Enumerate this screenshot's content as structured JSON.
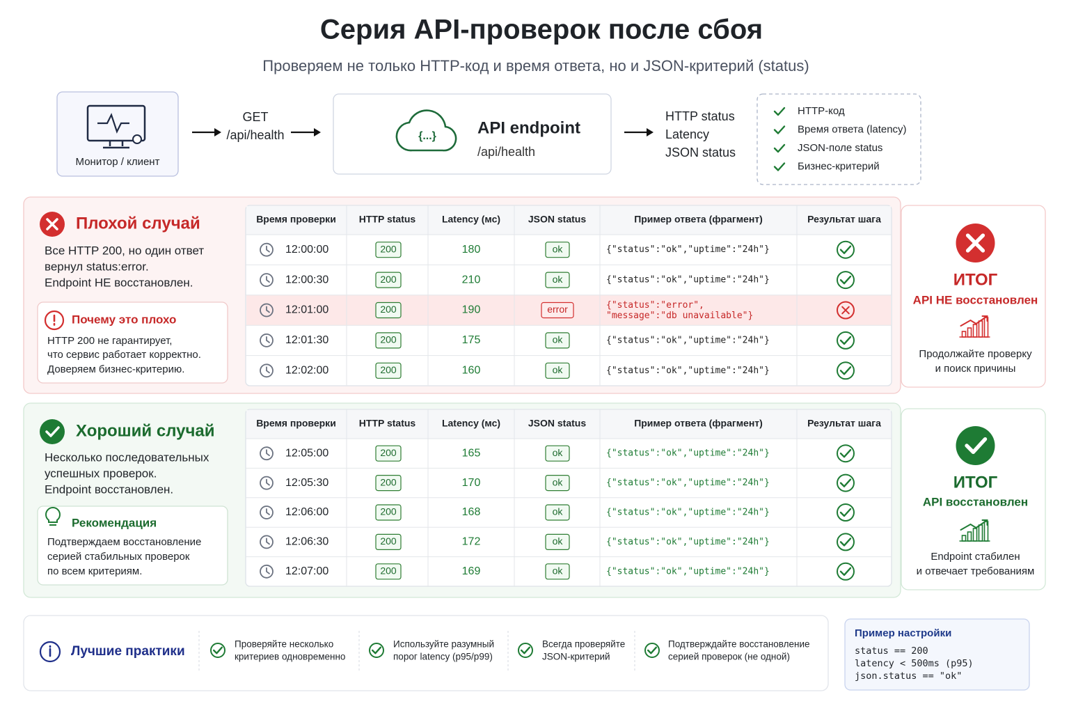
{
  "header": {
    "title": "Серия API-проверок после сбоя",
    "subtitle": "Проверяем не только HTTP-код и время ответа, но и JSON-критерий (status)"
  },
  "flow": {
    "client": "Монитор / клиент",
    "request": [
      "GET",
      "/api/health"
    ],
    "endpoint": {
      "title": "API endpoint",
      "path": "/api/health"
    },
    "outputs": [
      "HTTP status",
      "Latency",
      "JSON status"
    ],
    "criteria": [
      "HTTP-код",
      "Время ответа (latency)",
      "JSON-поле status",
      "Бизнес-критерий"
    ]
  },
  "bad_case": {
    "title": "Плохой случай",
    "description": [
      "Все HTTP 200, но один ответ",
      "вернул status:error.",
      "Endpoint НЕ восстановлен."
    ],
    "note": {
      "title": "Почему это плохо",
      "text": [
        "HTTP 200 не гарантирует,",
        "что сервис работает корректно.",
        "Доверяем бизнес-критерию."
      ]
    },
    "table": {
      "columns": [
        "Время проверки",
        "HTTP status",
        "Latency (мс)",
        "JSON status",
        "Пример ответа (фрагмент)",
        "Результат шага"
      ],
      "rows": [
        {
          "time": "12:00:00",
          "http": 200,
          "latency": 180,
          "json": "ok",
          "response": "{\"status\":\"ok\",\"uptime\":\"24h\"}"
        },
        {
          "time": "12:00:30",
          "http": 200,
          "latency": 210,
          "json": "ok",
          "response": "{\"status\":\"ok\",\"uptime\":\"24h\"}"
        },
        {
          "time": "12:01:00",
          "http": 200,
          "latency": 190,
          "json": "error",
          "response": [
            "{\"status\":\"error\",",
            "\"message\":\"db unavailable\"}"
          ]
        },
        {
          "time": "12:01:30",
          "http": 200,
          "latency": 175,
          "json": "ok",
          "response": "{\"status\":\"ok\",\"uptime\":\"24h\"}"
        },
        {
          "time": "12:02:00",
          "http": 200,
          "latency": 160,
          "json": "ok",
          "response": "{\"status\":\"ok\",\"uptime\":\"24h\"}"
        }
      ]
    },
    "result": {
      "heading": "ИТОГ",
      "status": "API НЕ восстановлен",
      "text": [
        "Продолжайте проверку",
        "и поиск причины"
      ]
    }
  },
  "good_case": {
    "title": "Хороший случай",
    "description": [
      "Несколько последовательных",
      "успешных проверок.",
      "Endpoint восстановлен."
    ],
    "note": {
      "title": "Рекомендация",
      "text": [
        "Подтверждаем восстановление",
        "серией стабильных проверок",
        "по всем критериям."
      ]
    },
    "table": {
      "columns": [
        "Время проверки",
        "HTTP status",
        "Latency (мс)",
        "JSON status",
        "Пример ответа (фрагмент)",
        "Результат шага"
      ],
      "rows": [
        {
          "time": "12:05:00",
          "http": 200,
          "latency": 165,
          "json": "ok",
          "response": "{\"status\":\"ok\",\"uptime\":\"24h\"}"
        },
        {
          "time": "12:05:30",
          "http": 200,
          "latency": 170,
          "json": "ok",
          "response": "{\"status\":\"ok\",\"uptime\":\"24h\"}"
        },
        {
          "time": "12:06:00",
          "http": 200,
          "latency": 168,
          "json": "ok",
          "response": "{\"status\":\"ok\",\"uptime\":\"24h\"}"
        },
        {
          "time": "12:06:30",
          "http": 200,
          "latency": 172,
          "json": "ok",
          "response": "{\"status\":\"ok\",\"uptime\":\"24h\"}"
        },
        {
          "time": "12:07:00",
          "http": 200,
          "latency": 169,
          "json": "ok",
          "response": "{\"status\":\"ok\",\"uptime\":\"24h\"}"
        }
      ]
    },
    "result": {
      "heading": "ИТОГ",
      "status": "API восстановлен",
      "text": [
        "Endpoint стабилен",
        "и отвечает требованиям"
      ]
    }
  },
  "practices": {
    "title": "Лучшие практики",
    "items": [
      [
        "Проверяйте несколько",
        "критериев одновременно"
      ],
      [
        "Используйте разумный",
        "порог latency (p95/p99)"
      ],
      [
        "Всегда проверяйте",
        "JSON-критерий"
      ],
      [
        "Подтверждайте восстановление",
        "серией проверок (не одной)"
      ]
    ]
  },
  "config": {
    "title": "Пример настройки",
    "lines": [
      "status == 200",
      "latency < 500ms (p95)",
      "json.status == \"ok\""
    ]
  }
}
